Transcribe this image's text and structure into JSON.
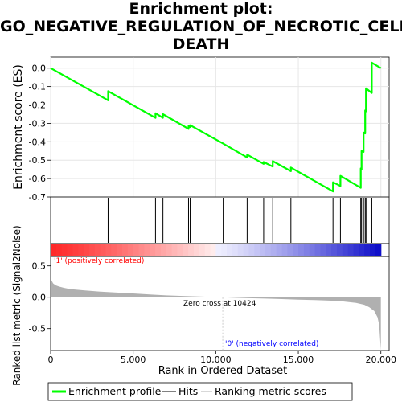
{
  "title_lines": [
    "Enrichment plot:",
    "GO_NEGATIVE_REGULATION_OF_NECROTIC_CELL_",
    "DEATH"
  ],
  "colors": {
    "es_line": "#00ff00",
    "hits": "#000000",
    "positive_label": "#ff0000",
    "negative_label": "#0000ff",
    "metric_fill": "#b0b0b0",
    "grid": "#e6e6e6"
  },
  "annotations": {
    "positive": "'1' (positively correlated)",
    "negative": "'0' (negatively correlated)",
    "zero_cross": "Zero cross at 10424"
  },
  "legend": {
    "enrichment": "Enrichment profile",
    "hits": "Hits",
    "ranking": "Ranking metric scores"
  },
  "chart_data": [
    {
      "type": "line",
      "name": "enrichment-score",
      "ylabel": "Enrichment score (ES)",
      "xlim": [
        0,
        20500
      ],
      "ylim": [
        -0.7,
        0.06
      ],
      "yticks": [
        0.0,
        -0.1,
        -0.2,
        -0.3,
        -0.4,
        -0.5,
        -0.6,
        -0.7
      ],
      "ytick_labels": [
        "0.0",
        "-0.1",
        "-0.2",
        "-0.3",
        "-0.4",
        "-0.5",
        "-0.6",
        "-0.7"
      ],
      "grid": true,
      "x": [
        0,
        3480,
        3480,
        6350,
        6350,
        6800,
        6800,
        8350,
        8350,
        8450,
        8450,
        10450,
        11900,
        11900,
        12900,
        12900,
        13450,
        13450,
        14550,
        14550,
        17100,
        17100,
        17550,
        17550,
        18780,
        18780,
        18830,
        18830,
        18950,
        18950,
        19050,
        19050,
        19100,
        19100,
        19450,
        19450,
        20000
      ],
      "y": [
        0.0,
        -0.175,
        -0.125,
        -0.27,
        -0.245,
        -0.27,
        -0.25,
        -0.33,
        -0.315,
        -0.32,
        -0.31,
        -0.41,
        -0.485,
        -0.47,
        -0.52,
        -0.51,
        -0.535,
        -0.505,
        -0.56,
        -0.54,
        -0.67,
        -0.62,
        -0.64,
        -0.585,
        -0.65,
        -0.545,
        -0.55,
        -0.45,
        -0.455,
        -0.35,
        -0.355,
        -0.23,
        -0.235,
        -0.11,
        -0.135,
        0.03,
        0.0
      ]
    },
    {
      "type": "scatter",
      "name": "hits",
      "x": [
        3480,
        6350,
        6800,
        8350,
        8450,
        10450,
        11900,
        12900,
        13450,
        14550,
        17100,
        17550,
        18780,
        18830,
        18950,
        19050,
        19100,
        19450
      ]
    },
    {
      "type": "area",
      "name": "ranking-metric",
      "ylabel": "Ranked list metric (Signal2Noise)",
      "xlabel": "Rank in Ordered Dataset",
      "xlim": [
        0,
        20500
      ],
      "ylim": [
        -0.85,
        0.65
      ],
      "yticks": [
        0.5,
        0.0,
        -0.5
      ],
      "ytick_labels": [
        "0.5",
        "0.0",
        "-0.5"
      ],
      "xticks": [
        0,
        5000,
        10000,
        15000,
        20000
      ],
      "xtick_labels": [
        "0",
        "5,000",
        "10,000",
        "15,000",
        "20,000"
      ],
      "x": [
        0,
        50,
        150,
        300,
        500,
        800,
        1200,
        2000,
        3000,
        4000,
        5000,
        6000,
        7000,
        8000,
        9000,
        10000,
        10424,
        11000,
        12000,
        13000,
        14000,
        15000,
        16000,
        17000,
        17500,
        18000,
        18500,
        19000,
        19300,
        19600,
        19800,
        19900,
        20000
      ],
      "y": [
        0.35,
        0.27,
        0.22,
        0.19,
        0.17,
        0.15,
        0.13,
        0.11,
        0.09,
        0.075,
        0.06,
        0.045,
        0.03,
        0.02,
        0.012,
        0.004,
        0.0,
        -0.006,
        -0.015,
        -0.022,
        -0.03,
        -0.038,
        -0.045,
        -0.055,
        -0.062,
        -0.075,
        -0.09,
        -0.12,
        -0.16,
        -0.22,
        -0.32,
        -0.45,
        -0.85
      ]
    }
  ]
}
